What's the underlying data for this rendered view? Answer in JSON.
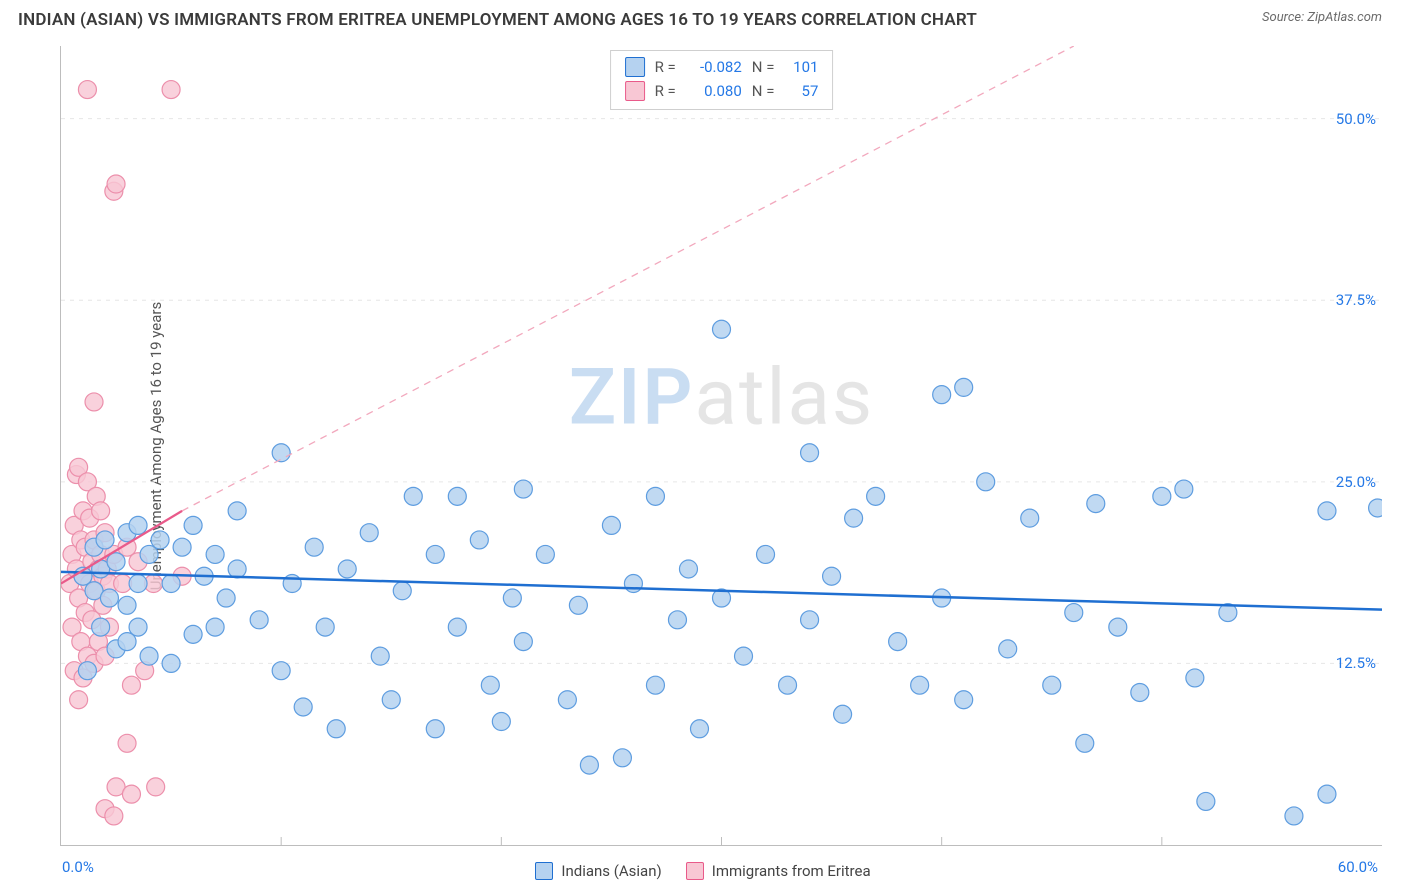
{
  "title": "INDIAN (ASIAN) VS IMMIGRANTS FROM ERITREA UNEMPLOYMENT AMONG AGES 16 TO 19 YEARS CORRELATION CHART",
  "source": "Source: ZipAtlas.com",
  "ylabel": "Unemployment Among Ages 16 to 19 years",
  "watermark": {
    "part1": "ZIP",
    "part2": "atlas"
  },
  "axis": {
    "xlim": [
      0,
      60
    ],
    "ylim": [
      0,
      55
    ],
    "x_corner_label": "0.0%",
    "y_corner_label": "60.0%",
    "y_ticks": [
      {
        "v": 12.5,
        "label": "12.5%"
      },
      {
        "v": 25.0,
        "label": "25.0%"
      },
      {
        "v": 37.5,
        "label": "37.5%"
      },
      {
        "v": 50.0,
        "label": "50.0%"
      }
    ],
    "x_tick_positions": [
      10,
      20,
      30,
      40,
      50
    ],
    "grid_color": "#e6e6e6",
    "grid_dash": "4,5",
    "tick_len": 8,
    "tick_color": "#bdbdbd"
  },
  "colors": {
    "blue_fill": "#b5d2f0",
    "blue_stroke": "#1f6fd1",
    "pink_fill": "#f8c7d4",
    "pink_stroke": "#e95a8a",
    "blue_text": "#2478e6"
  },
  "series": [
    {
      "name": "Indians (Asian)",
      "short": "blue",
      "fill": "#b5d2f0",
      "stroke": "#5e9de0",
      "marker_r": 9,
      "opacity": 0.85,
      "R": "-0.082",
      "N": "101",
      "trend": {
        "x1": 0,
        "y1": 18.8,
        "x2": 60,
        "y2": 16.2,
        "dash": "",
        "width": 2.5,
        "color": "#1f6fd1",
        "extrap": {
          "x1": 60,
          "y1": 16.2,
          "x2": 60,
          "y2": 16.2
        }
      },
      "extrap_line": null,
      "points": [
        [
          1.0,
          18.5
        ],
        [
          1.2,
          12.0
        ],
        [
          1.5,
          20.5
        ],
        [
          1.5,
          17.5
        ],
        [
          1.8,
          19.0
        ],
        [
          1.8,
          15.0
        ],
        [
          2.0,
          21.0
        ],
        [
          2.2,
          17.0
        ],
        [
          2.5,
          19.5
        ],
        [
          2.5,
          13.5
        ],
        [
          3.0,
          21.5
        ],
        [
          3.0,
          16.5
        ],
        [
          3.0,
          14.0
        ],
        [
          3.5,
          18.0
        ],
        [
          3.5,
          15.0
        ],
        [
          3.5,
          22.0
        ],
        [
          4.0,
          20.0
        ],
        [
          4.0,
          13.0
        ],
        [
          4.5,
          21.0
        ],
        [
          5.0,
          18.0
        ],
        [
          5.0,
          12.5
        ],
        [
          5.5,
          20.5
        ],
        [
          6.0,
          22.0
        ],
        [
          6.0,
          14.5
        ],
        [
          6.5,
          18.5
        ],
        [
          7.0,
          20.0
        ],
        [
          7.0,
          15.0
        ],
        [
          7.5,
          17.0
        ],
        [
          8.0,
          23.0
        ],
        [
          8.0,
          19.0
        ],
        [
          9.0,
          15.5
        ],
        [
          10.0,
          27.0
        ],
        [
          10.0,
          12.0
        ],
        [
          10.5,
          18.0
        ],
        [
          11.0,
          9.5
        ],
        [
          11.5,
          20.5
        ],
        [
          12.0,
          15.0
        ],
        [
          12.5,
          8.0
        ],
        [
          13.0,
          19.0
        ],
        [
          14.0,
          21.5
        ],
        [
          14.5,
          13.0
        ],
        [
          15.0,
          10.0
        ],
        [
          15.5,
          17.5
        ],
        [
          16.0,
          24.0
        ],
        [
          17.0,
          20.0
        ],
        [
          17.0,
          8.0
        ],
        [
          18.0,
          24.0
        ],
        [
          18.0,
          15.0
        ],
        [
          19.0,
          21.0
        ],
        [
          19.5,
          11.0
        ],
        [
          20.0,
          8.5
        ],
        [
          20.5,
          17.0
        ],
        [
          21.0,
          24.5
        ],
        [
          21.0,
          14.0
        ],
        [
          22.0,
          20.0
        ],
        [
          23.0,
          10.0
        ],
        [
          23.5,
          16.5
        ],
        [
          24.0,
          5.5
        ],
        [
          25.0,
          22.0
        ],
        [
          25.5,
          6.0
        ],
        [
          26.0,
          18.0
        ],
        [
          27.0,
          11.0
        ],
        [
          27.0,
          24.0
        ],
        [
          28.0,
          15.5
        ],
        [
          28.5,
          19.0
        ],
        [
          29.0,
          8.0
        ],
        [
          30.0,
          35.5
        ],
        [
          30.0,
          17.0
        ],
        [
          31.0,
          13.0
        ],
        [
          32.0,
          20.0
        ],
        [
          33.0,
          11.0
        ],
        [
          34.0,
          27.0
        ],
        [
          34.0,
          15.5
        ],
        [
          35.0,
          18.5
        ],
        [
          35.5,
          9.0
        ],
        [
          36.0,
          22.5
        ],
        [
          37.0,
          24.0
        ],
        [
          38.0,
          14.0
        ],
        [
          39.0,
          11.0
        ],
        [
          40.0,
          17.0
        ],
        [
          40.0,
          31.0
        ],
        [
          41.0,
          31.5
        ],
        [
          41.0,
          10.0
        ],
        [
          42.0,
          25.0
        ],
        [
          43.0,
          13.5
        ],
        [
          44.0,
          22.5
        ],
        [
          45.0,
          11.0
        ],
        [
          46.0,
          16.0
        ],
        [
          46.5,
          7.0
        ],
        [
          47.0,
          23.5
        ],
        [
          48.0,
          15.0
        ],
        [
          49.0,
          10.5
        ],
        [
          50.0,
          24.0
        ],
        [
          51.0,
          24.5
        ],
        [
          51.5,
          11.5
        ],
        [
          52.0,
          3.0
        ],
        [
          53.0,
          16.0
        ],
        [
          56.0,
          2.0
        ],
        [
          57.5,
          3.5
        ],
        [
          57.5,
          23.0
        ],
        [
          59.8,
          23.2
        ]
      ]
    },
    {
      "name": "Immigrants from Eritrea",
      "short": "pink",
      "fill": "#f8c7d4",
      "stroke": "#ec8fab",
      "marker_r": 9,
      "opacity": 0.82,
      "R": "0.080",
      "N": "57",
      "trend": {
        "x1": 0,
        "y1": 18.0,
        "x2": 5.5,
        "y2": 23.0,
        "dash": "",
        "width": 2.2,
        "color": "#e95a8a"
      },
      "extrap_line": {
        "x1": 5.5,
        "y1": 23.0,
        "x2": 46,
        "y2": 55.0,
        "dash": "7,6",
        "width": 1.3,
        "color": "#f2a8bd"
      },
      "points": [
        [
          0.4,
          18.0
        ],
        [
          0.5,
          20.0
        ],
        [
          0.5,
          15.0
        ],
        [
          0.6,
          22.0
        ],
        [
          0.6,
          12.0
        ],
        [
          0.7,
          19.0
        ],
        [
          0.7,
          25.5
        ],
        [
          0.8,
          17.0
        ],
        [
          0.8,
          10.0
        ],
        [
          0.8,
          26.0
        ],
        [
          0.9,
          21.0
        ],
        [
          0.9,
          14.0
        ],
        [
          1.0,
          18.5
        ],
        [
          1.0,
          23.0
        ],
        [
          1.0,
          11.5
        ],
        [
          1.1,
          20.5
        ],
        [
          1.1,
          16.0
        ],
        [
          1.2,
          25.0
        ],
        [
          1.2,
          13.0
        ],
        [
          1.2,
          52.0
        ],
        [
          1.3,
          18.0
        ],
        [
          1.3,
          22.5
        ],
        [
          1.4,
          15.5
        ],
        [
          1.4,
          19.5
        ],
        [
          1.5,
          21.0
        ],
        [
          1.5,
          12.5
        ],
        [
          1.5,
          30.5
        ],
        [
          1.6,
          17.5
        ],
        [
          1.6,
          24.0
        ],
        [
          1.7,
          19.0
        ],
        [
          1.7,
          14.0
        ],
        [
          1.8,
          20.0
        ],
        [
          1.8,
          23.0
        ],
        [
          1.9,
          16.5
        ],
        [
          1.9,
          18.5
        ],
        [
          2.0,
          21.5
        ],
        [
          2.0,
          13.0
        ],
        [
          2.0,
          2.5
        ],
        [
          2.1,
          19.0
        ],
        [
          2.2,
          18.0
        ],
        [
          2.2,
          15.0
        ],
        [
          2.4,
          20.0
        ],
        [
          2.4,
          45.0
        ],
        [
          2.4,
          2.0
        ],
        [
          2.5,
          45.5
        ],
        [
          2.5,
          4.0
        ],
        [
          2.8,
          18.0
        ],
        [
          3.0,
          20.5
        ],
        [
          3.0,
          7.0
        ],
        [
          3.2,
          11.0
        ],
        [
          3.2,
          3.5
        ],
        [
          3.5,
          19.5
        ],
        [
          3.8,
          12.0
        ],
        [
          4.2,
          18.0
        ],
        [
          4.3,
          4.0
        ],
        [
          5.0,
          52.0
        ],
        [
          5.5,
          18.5
        ]
      ]
    }
  ],
  "legend": {
    "series1_label": "Indians (Asian)",
    "series2_label": "Immigrants from Eritrea",
    "stat_R_label": "R =",
    "stat_N_label": "N ="
  }
}
